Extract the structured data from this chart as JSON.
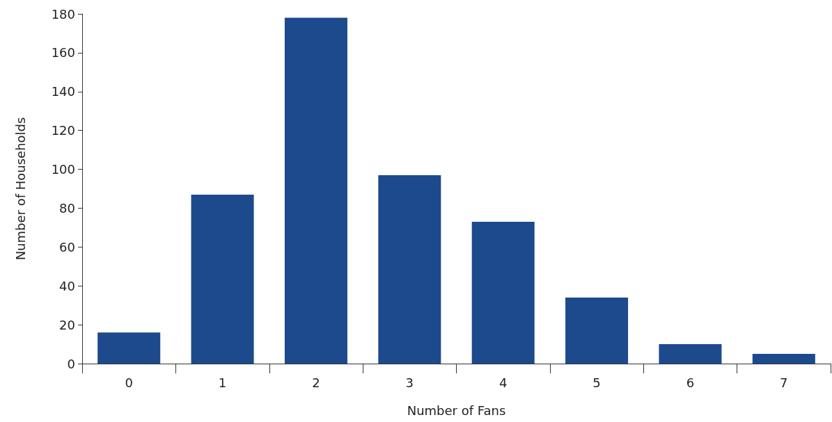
{
  "chart_data": {
    "type": "bar",
    "xlabel": "Number of Fans",
    "ylabel": "Number of Households",
    "categories": [
      "0",
      "1",
      "2",
      "3",
      "4",
      "5",
      "6",
      "7"
    ],
    "values": [
      16,
      87,
      178,
      97,
      73,
      34,
      10,
      5
    ],
    "color": "#1c4a8c",
    "ylim": [
      0,
      180
    ],
    "yticks": [
      0,
      20,
      40,
      60,
      80,
      100,
      120,
      140,
      160,
      180
    ],
    "grid": false
  }
}
